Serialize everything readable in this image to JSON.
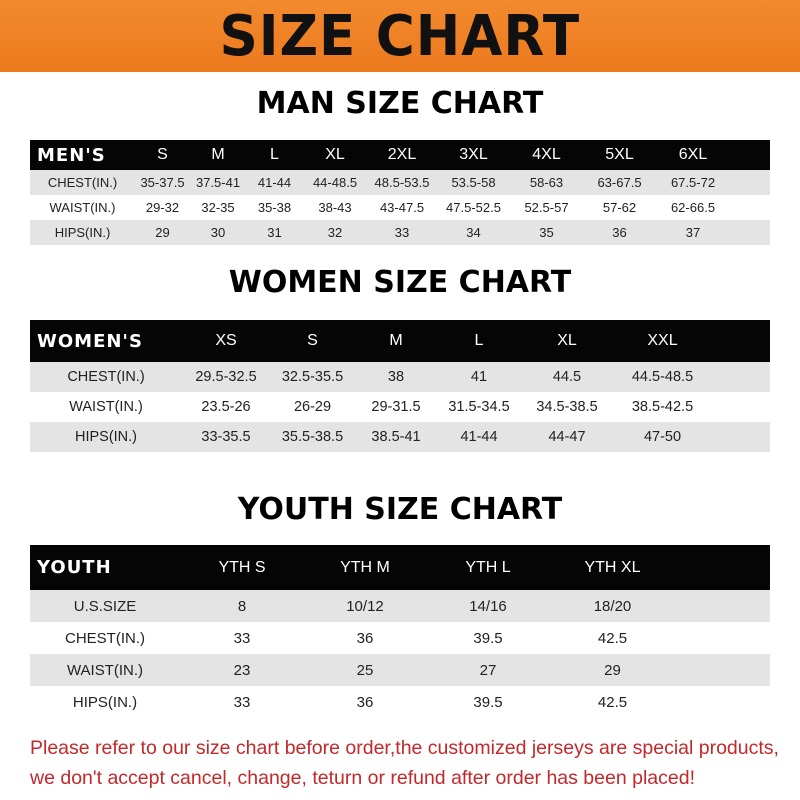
{
  "banner": {
    "title": "SIZE CHART",
    "color": "#ee7f22"
  },
  "men": {
    "title": "MAN SIZE CHART",
    "header": "MEN'S",
    "sizes": [
      "S",
      "M",
      "L",
      "XL",
      "2XL",
      "3XL",
      "4XL",
      "5XL",
      "6XL"
    ],
    "rows": [
      {
        "label": "CHEST(IN.)",
        "values": [
          "35-37.5",
          "37.5-41",
          "41-44",
          "44-48.5",
          "48.5-53.5",
          "53.5-58",
          "58-63",
          "63-67.5",
          "67.5-72"
        ]
      },
      {
        "label": "WAIST(IN.)",
        "values": [
          "29-32",
          "32-35",
          "35-38",
          "38-43",
          "43-47.5",
          "47.5-52.5",
          "52.5-57",
          "57-62",
          "62-66.5"
        ]
      },
      {
        "label": "HIPS(IN.)",
        "values": [
          "29",
          "30",
          "31",
          "32",
          "33",
          "34",
          "35",
          "36",
          "37"
        ]
      }
    ]
  },
  "women": {
    "title": "WOMEN SIZE CHART",
    "header": "WOMEN'S",
    "sizes": [
      "XS",
      "S",
      "M",
      "L",
      "XL",
      "XXL"
    ],
    "rows": [
      {
        "label": "CHEST(IN.)",
        "values": [
          "29.5-32.5",
          "32.5-35.5",
          "38",
          "41",
          "44.5",
          "44.5-48.5"
        ]
      },
      {
        "label": "WAIST(IN.)",
        "values": [
          "23.5-26",
          "26-29",
          "29-31.5",
          "31.5-34.5",
          "34.5-38.5",
          "38.5-42.5"
        ]
      },
      {
        "label": "HIPS(IN.)",
        "values": [
          "33-35.5",
          "35.5-38.5",
          "38.5-41",
          "41-44",
          "44-47",
          "47-50"
        ]
      }
    ]
  },
  "youth": {
    "title": "YOUTH SIZE CHART",
    "header": "YOUTH",
    "sizes": [
      "YTH S",
      "YTH M",
      "YTH L",
      "YTH XL"
    ],
    "rows": [
      {
        "label": "U.S.SIZE",
        "values": [
          "8",
          "10/12",
          "14/16",
          "18/20"
        ]
      },
      {
        "label": "CHEST(IN.)",
        "values": [
          "33",
          "36",
          "39.5",
          "42.5"
        ]
      },
      {
        "label": "WAIST(IN.)",
        "values": [
          "23",
          "25",
          "27",
          "29"
        ]
      },
      {
        "label": "HIPS(IN.)",
        "values": [
          "33",
          "36",
          "39.5",
          "42.5"
        ]
      }
    ]
  },
  "footer": {
    "line1": "Please refer to our size chart before order,the customized jerseys are special products,",
    "line2": "we don't accept cancel, change, teturn or refund after order has been placed!",
    "color": "#c3282a"
  }
}
